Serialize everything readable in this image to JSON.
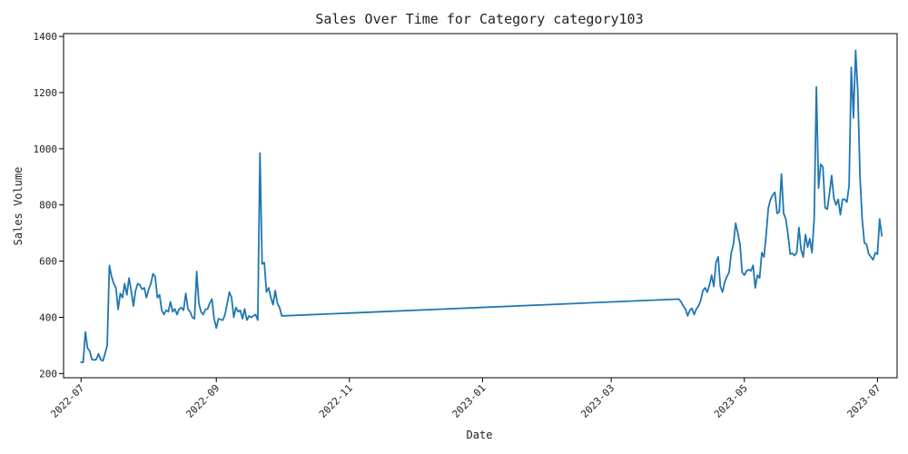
{
  "chart_data": {
    "type": "line",
    "title": "Sales Over Time for Category category103",
    "xlabel": "Date",
    "ylabel": "Sales Volume",
    "xlim": [
      "2022-06-23",
      "2023-07-10"
    ],
    "ylim": [
      185,
      1410
    ],
    "grid": false,
    "legend": "none",
    "colors": {
      "line": "#1f77b4",
      "axes": "#000000",
      "text": "#222222"
    },
    "x_ticks": [
      {
        "date": "2022-07-01",
        "label": "2022-07"
      },
      {
        "date": "2022-09-01",
        "label": "2022-09"
      },
      {
        "date": "2022-11-01",
        "label": "2022-11"
      },
      {
        "date": "2023-01-01",
        "label": "2023-01"
      },
      {
        "date": "2023-03-01",
        "label": "2023-03"
      },
      {
        "date": "2023-05-01",
        "label": "2023-05"
      },
      {
        "date": "2023-07-01",
        "label": "2023-07"
      }
    ],
    "y_ticks": [
      {
        "value": 200,
        "label": "200"
      },
      {
        "value": 400,
        "label": "400"
      },
      {
        "value": 600,
        "label": "600"
      },
      {
        "value": 800,
        "label": "800"
      },
      {
        "value": 1000,
        "label": "1000"
      },
      {
        "value": 1200,
        "label": "1200"
      },
      {
        "value": 1400,
        "label": "1400"
      }
    ],
    "series": [
      {
        "points": [
          [
            "2022-07-01",
            240
          ],
          [
            "2022-07-02",
            240
          ],
          [
            "2022-07-03",
            348
          ],
          [
            "2022-07-04",
            290
          ],
          [
            "2022-07-05",
            280
          ],
          [
            "2022-07-06",
            250
          ],
          [
            "2022-07-07",
            248
          ],
          [
            "2022-07-08",
            250
          ],
          [
            "2022-07-09",
            270
          ],
          [
            "2022-07-10",
            250
          ],
          [
            "2022-07-11",
            245
          ],
          [
            "2022-07-12",
            270
          ],
          [
            "2022-07-13",
            300
          ],
          [
            "2022-07-14",
            585
          ],
          [
            "2022-07-15",
            545
          ],
          [
            "2022-07-16",
            520
          ],
          [
            "2022-07-17",
            505
          ],
          [
            "2022-07-18",
            428
          ],
          [
            "2022-07-19",
            485
          ],
          [
            "2022-07-20",
            470
          ],
          [
            "2022-07-21",
            520
          ],
          [
            "2022-07-22",
            480
          ],
          [
            "2022-07-23",
            540
          ],
          [
            "2022-07-24",
            495
          ],
          [
            "2022-07-25",
            440
          ],
          [
            "2022-07-26",
            495
          ],
          [
            "2022-07-27",
            520
          ],
          [
            "2022-07-28",
            515
          ],
          [
            "2022-07-29",
            500
          ],
          [
            "2022-07-30",
            505
          ],
          [
            "2022-07-31",
            470
          ],
          [
            "2022-08-01",
            500
          ],
          [
            "2022-08-02",
            520
          ],
          [
            "2022-08-03",
            555
          ],
          [
            "2022-08-04",
            545
          ],
          [
            "2022-08-05",
            470
          ],
          [
            "2022-08-06",
            480
          ],
          [
            "2022-08-07",
            425
          ],
          [
            "2022-08-08",
            410
          ],
          [
            "2022-08-09",
            425
          ],
          [
            "2022-08-10",
            420
          ],
          [
            "2022-08-11",
            455
          ],
          [
            "2022-08-12",
            420
          ],
          [
            "2022-08-13",
            430
          ],
          [
            "2022-08-14",
            410
          ],
          [
            "2022-08-15",
            430
          ],
          [
            "2022-08-16",
            435
          ],
          [
            "2022-08-17",
            425
          ],
          [
            "2022-08-18",
            485
          ],
          [
            "2022-08-19",
            430
          ],
          [
            "2022-08-20",
            420
          ],
          [
            "2022-08-21",
            400
          ],
          [
            "2022-08-22",
            395
          ],
          [
            "2022-08-23",
            563
          ],
          [
            "2022-08-24",
            450
          ],
          [
            "2022-08-25",
            420
          ],
          [
            "2022-08-26",
            410
          ],
          [
            "2022-08-27",
            428
          ],
          [
            "2022-08-28",
            430
          ],
          [
            "2022-08-29",
            450
          ],
          [
            "2022-08-30",
            465
          ],
          [
            "2022-08-31",
            395
          ],
          [
            "2022-09-01",
            362
          ],
          [
            "2022-09-02",
            395
          ],
          [
            "2022-09-03",
            392
          ],
          [
            "2022-09-04",
            390
          ],
          [
            "2022-09-05",
            410
          ],
          [
            "2022-09-06",
            450
          ],
          [
            "2022-09-07",
            490
          ],
          [
            "2022-09-08",
            470
          ],
          [
            "2022-09-09",
            400
          ],
          [
            "2022-09-10",
            435
          ],
          [
            "2022-09-11",
            420
          ],
          [
            "2022-09-12",
            425
          ],
          [
            "2022-09-13",
            395
          ],
          [
            "2022-09-14",
            430
          ],
          [
            "2022-09-15",
            390
          ],
          [
            "2022-09-16",
            405
          ],
          [
            "2022-09-17",
            400
          ],
          [
            "2022-09-18",
            405
          ],
          [
            "2022-09-19",
            410
          ],
          [
            "2022-09-20",
            390
          ],
          [
            "2022-09-21",
            985
          ],
          [
            "2022-09-22",
            590
          ],
          [
            "2022-09-23",
            595
          ],
          [
            "2022-09-24",
            490
          ],
          [
            "2022-09-25",
            505
          ],
          [
            "2022-09-26",
            470
          ],
          [
            "2022-09-27",
            445
          ],
          [
            "2022-09-28",
            495
          ],
          [
            "2022-09-29",
            450
          ],
          [
            "2022-09-30",
            435
          ],
          [
            "2022-10-01",
            405
          ],
          [
            "2023-04-01",
            465
          ],
          [
            "2023-04-02",
            455
          ],
          [
            "2023-04-03",
            440
          ],
          [
            "2023-04-04",
            430
          ],
          [
            "2023-04-05",
            405
          ],
          [
            "2023-04-06",
            425
          ],
          [
            "2023-04-07",
            432
          ],
          [
            "2023-04-08",
            410
          ],
          [
            "2023-04-09",
            430
          ],
          [
            "2023-04-10",
            440
          ],
          [
            "2023-04-11",
            460
          ],
          [
            "2023-04-12",
            495
          ],
          [
            "2023-04-13",
            505
          ],
          [
            "2023-04-14",
            490
          ],
          [
            "2023-04-15",
            515
          ],
          [
            "2023-04-16",
            550
          ],
          [
            "2023-04-17",
            510
          ],
          [
            "2023-04-18",
            595
          ],
          [
            "2023-04-19",
            615
          ],
          [
            "2023-04-20",
            510
          ],
          [
            "2023-04-21",
            490
          ],
          [
            "2023-04-22",
            525
          ],
          [
            "2023-04-23",
            545
          ],
          [
            "2023-04-24",
            560
          ],
          [
            "2023-04-25",
            630
          ],
          [
            "2023-04-26",
            660
          ],
          [
            "2023-04-27",
            735
          ],
          [
            "2023-04-28",
            700
          ],
          [
            "2023-04-29",
            660
          ],
          [
            "2023-04-30",
            560
          ],
          [
            "2023-05-01",
            550
          ],
          [
            "2023-05-02",
            565
          ],
          [
            "2023-05-03",
            570
          ],
          [
            "2023-05-04",
            565
          ],
          [
            "2023-05-05",
            585
          ],
          [
            "2023-05-06",
            505
          ],
          [
            "2023-05-07",
            550
          ],
          [
            "2023-05-08",
            540
          ],
          [
            "2023-05-09",
            630
          ],
          [
            "2023-05-10",
            615
          ],
          [
            "2023-05-11",
            695
          ],
          [
            "2023-05-12",
            790
          ],
          [
            "2023-05-13",
            820
          ],
          [
            "2023-05-14",
            835
          ],
          [
            "2023-05-15",
            845
          ],
          [
            "2023-05-16",
            770
          ],
          [
            "2023-05-17",
            775
          ],
          [
            "2023-05-18",
            910
          ],
          [
            "2023-05-19",
            770
          ],
          [
            "2023-05-20",
            750
          ],
          [
            "2023-05-21",
            695
          ],
          [
            "2023-05-22",
            625
          ],
          [
            "2023-05-23",
            628
          ],
          [
            "2023-05-24",
            620
          ],
          [
            "2023-05-25",
            630
          ],
          [
            "2023-05-26",
            720
          ],
          [
            "2023-05-27",
            640
          ],
          [
            "2023-05-28",
            615
          ],
          [
            "2023-05-29",
            695
          ],
          [
            "2023-05-30",
            650
          ],
          [
            "2023-05-31",
            680
          ],
          [
            "2023-06-01",
            630
          ],
          [
            "2023-06-02",
            750
          ],
          [
            "2023-06-03",
            1220
          ],
          [
            "2023-06-04",
            860
          ],
          [
            "2023-06-05",
            945
          ],
          [
            "2023-06-06",
            935
          ],
          [
            "2023-06-07",
            790
          ],
          [
            "2023-06-08",
            785
          ],
          [
            "2023-06-09",
            840
          ],
          [
            "2023-06-10",
            905
          ],
          [
            "2023-06-11",
            825
          ],
          [
            "2023-06-12",
            800
          ],
          [
            "2023-06-13",
            820
          ],
          [
            "2023-06-14",
            765
          ],
          [
            "2023-06-15",
            820
          ],
          [
            "2023-06-16",
            820
          ],
          [
            "2023-06-17",
            810
          ],
          [
            "2023-06-18",
            870
          ],
          [
            "2023-06-19",
            1290
          ],
          [
            "2023-06-20",
            1110
          ],
          [
            "2023-06-21",
            1350
          ],
          [
            "2023-06-22",
            1200
          ],
          [
            "2023-06-23",
            900
          ],
          [
            "2023-06-24",
            750
          ],
          [
            "2023-06-25",
            665
          ],
          [
            "2023-06-26",
            660
          ],
          [
            "2023-06-27",
            625
          ],
          [
            "2023-06-28",
            615
          ],
          [
            "2023-06-29",
            605
          ],
          [
            "2023-06-30",
            630
          ],
          [
            "2023-07-01",
            625
          ],
          [
            "2023-07-02",
            750
          ],
          [
            "2023-07-03",
            690
          ]
        ]
      }
    ]
  }
}
